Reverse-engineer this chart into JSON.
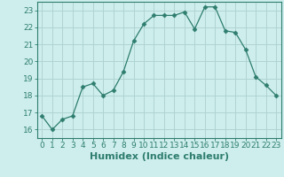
{
  "x": [
    0,
    1,
    2,
    3,
    4,
    5,
    6,
    7,
    8,
    9,
    10,
    11,
    12,
    13,
    14,
    15,
    16,
    17,
    18,
    19,
    20,
    21,
    22,
    23
  ],
  "y": [
    16.8,
    16.0,
    16.6,
    16.8,
    18.5,
    18.7,
    18.0,
    18.3,
    19.4,
    21.2,
    22.2,
    22.7,
    22.7,
    22.7,
    22.9,
    21.9,
    23.2,
    23.2,
    21.8,
    21.7,
    20.7,
    19.1,
    18.6,
    18.0
  ],
  "line_color": "#2e7d6e",
  "marker": "D",
  "marker_size": 2.5,
  "bg_color": "#ceeeed",
  "grid_color": "#b0d4d2",
  "xlabel": "Humidex (Indice chaleur)",
  "ylabel_ticks": [
    16,
    17,
    18,
    19,
    20,
    21,
    22,
    23
  ],
  "xlabel_ticks": [
    0,
    1,
    2,
    3,
    4,
    5,
    6,
    7,
    8,
    9,
    10,
    11,
    12,
    13,
    14,
    15,
    16,
    17,
    18,
    19,
    20,
    21,
    22,
    23
  ],
  "ylim": [
    15.5,
    23.5
  ],
  "xlim": [
    -0.5,
    23.5
  ],
  "tick_fontsize": 6.5,
  "xlabel_fontsize": 8,
  "spine_color": "#2e7d6e",
  "axis_color": "#2e7d6e"
}
